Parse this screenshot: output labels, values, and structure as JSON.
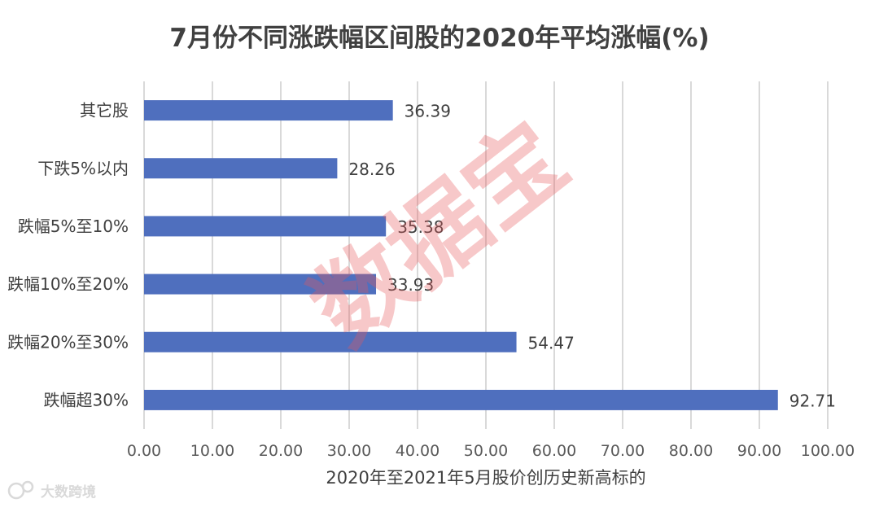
{
  "chart_data": {
    "type": "bar",
    "orientation": "horizontal",
    "title": "7月份不同涨跌幅区间股的2020年平均涨幅(%)",
    "xlabel": "2020年至2021年5月股价创历史新高标的",
    "categories": [
      "其它股",
      "下跌5%以内",
      "跌幅5%至10%",
      "跌幅10%至20%",
      "跌幅20%至30%",
      "跌幅超30%"
    ],
    "values": [
      36.39,
      28.26,
      35.38,
      33.93,
      54.47,
      92.71
    ],
    "value_labels": [
      "36.39",
      "28.26",
      "35.38",
      "33.93",
      "54.47",
      "92.71"
    ],
    "xlim": [
      0,
      100
    ],
    "xticks": [
      0,
      10,
      20,
      30,
      40,
      50,
      60,
      70,
      80,
      90,
      100
    ],
    "xtick_labels": [
      "0.00",
      "10.00",
      "20.00",
      "30.00",
      "40.00",
      "50.00",
      "60.00",
      "70.00",
      "80.00",
      "90.00",
      "100.00"
    ],
    "grid": "vertical",
    "bar_color": "#4f6fbe",
    "grid_color": "#d9d9d9"
  },
  "watermark": {
    "text": "数据宝",
    "color": "#e8575c"
  },
  "brand": {
    "text": "大数跨境"
  }
}
